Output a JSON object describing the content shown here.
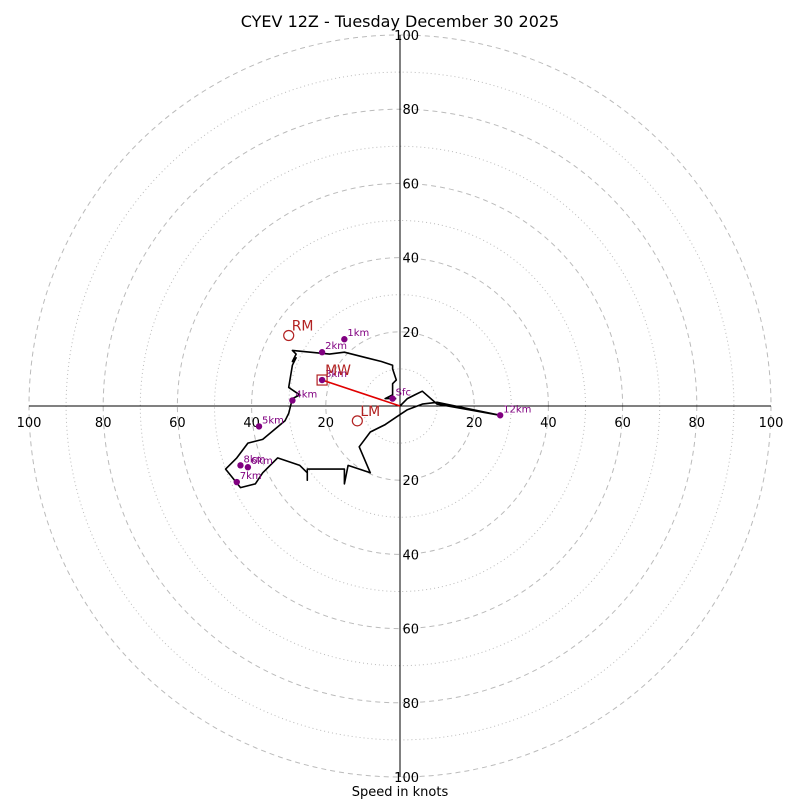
{
  "chart_data": {
    "type": "line",
    "title": "CYEV 12Z - Tuesday December 30 2025",
    "xlabel": "Speed in knots",
    "ylabel": "",
    "range": [
      -100,
      100
    ],
    "ring_step": 10,
    "major_ring_step": 20,
    "grid": true,
    "tick_labels": [
      "20",
      "40",
      "60",
      "80",
      "100"
    ],
    "tick_values": [
      20,
      40,
      60,
      80,
      100
    ],
    "hodograph": {
      "u": [
        0,
        2,
        4,
        6,
        10,
        27,
        10,
        6,
        2,
        -1,
        -4,
        -8,
        -11,
        -8,
        -14,
        -15,
        -15,
        -25,
        -25,
        -25,
        -27,
        -33,
        -37,
        -39,
        -43,
        -47,
        -44,
        -41,
        -37,
        -31,
        -30,
        -29,
        -27,
        -30,
        -29,
        -28,
        -29,
        -28,
        -29,
        -19,
        -15,
        -9,
        -5,
        -2,
        -2,
        -1,
        -2,
        -2,
        -4,
        -1
      ],
      "v": [
        0,
        2,
        3,
        4,
        0.5,
        -2.5,
        1,
        0.5,
        -1,
        -3,
        -5,
        -7,
        -11,
        -18,
        -16,
        -21,
        -17,
        -17,
        -20,
        -18,
        -16,
        -14,
        -18,
        -21,
        -22,
        -17,
        -14,
        -10,
        -9,
        -4,
        -2,
        2,
        3,
        5,
        11,
        13,
        12,
        14,
        15,
        14,
        14.5,
        13,
        12,
        11,
        10,
        7,
        6,
        3,
        2,
        2
      ]
    },
    "height_markers": [
      {
        "label": "Sfc",
        "u": -2,
        "v": 2
      },
      {
        "label": "1km",
        "u": -15,
        "v": 18
      },
      {
        "label": "2km",
        "u": -21,
        "v": 14.5
      },
      {
        "label": "3km",
        "u": -21,
        "v": 7
      },
      {
        "label": "4km",
        "u": -29,
        "v": 1.5
      },
      {
        "label": "5km",
        "u": -38,
        "v": -5.5
      },
      {
        "label": "6km",
        "u": -41,
        "v": -16.5
      },
      {
        "label": "7km",
        "u": -44,
        "v": -20.5
      },
      {
        "label": "8km",
        "u": -43,
        "v": -16
      },
      {
        "label": "12km",
        "u": 27,
        "v": -2.5
      }
    ],
    "storm_motions": [
      {
        "label": "RM",
        "u": -30,
        "v": 19,
        "marker": "circle"
      },
      {
        "label": "LM",
        "u": -11.5,
        "v": -4,
        "marker": "circle"
      },
      {
        "label": "MW",
        "u": -21,
        "v": 7,
        "marker": "square"
      }
    ],
    "shear_vector": {
      "from_u": 0,
      "from_v": 0,
      "to_u": -21,
      "to_v": 7
    },
    "colors": {
      "hodograph": "#000000",
      "height_markers": "#800080",
      "storm_motion": "#b22222",
      "shear_vector": "#e00000",
      "grid": "#bbbbbb"
    }
  }
}
